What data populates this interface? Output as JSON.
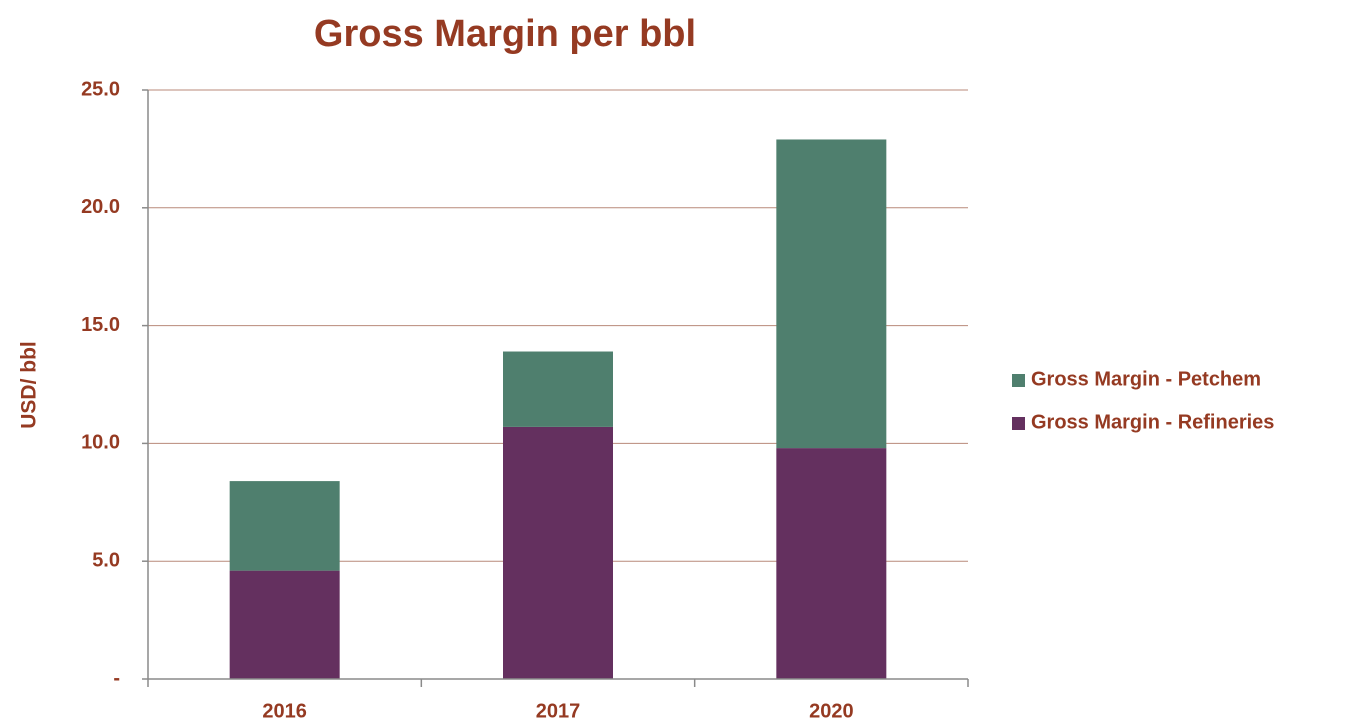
{
  "chart_data": {
    "type": "stacked_bar",
    "title": "Gross Margin per bbl",
    "y_label": "USD/ bbl",
    "categories": [
      "2016",
      "2017",
      "2020"
    ],
    "series": [
      {
        "name": "Gross Margin - Refineries",
        "color": "#64305f",
        "values": [
          4.6,
          10.7,
          9.8
        ]
      },
      {
        "name": "Gross Margin - Petchem",
        "color": "#4f7f6e",
        "values": [
          3.8,
          3.2,
          13.1
        ]
      }
    ],
    "ylim": [
      0,
      25
    ],
    "yticks": [
      {
        "value": 0,
        "label": "-"
      },
      {
        "value": 5,
        "label": "5.0"
      },
      {
        "value": 10,
        "label": "10.0"
      },
      {
        "value": 15,
        "label": "15.0"
      },
      {
        "value": 20,
        "label": "20.0"
      },
      {
        "value": 25,
        "label": "25.0"
      }
    ],
    "grid": true,
    "legend": "right"
  }
}
